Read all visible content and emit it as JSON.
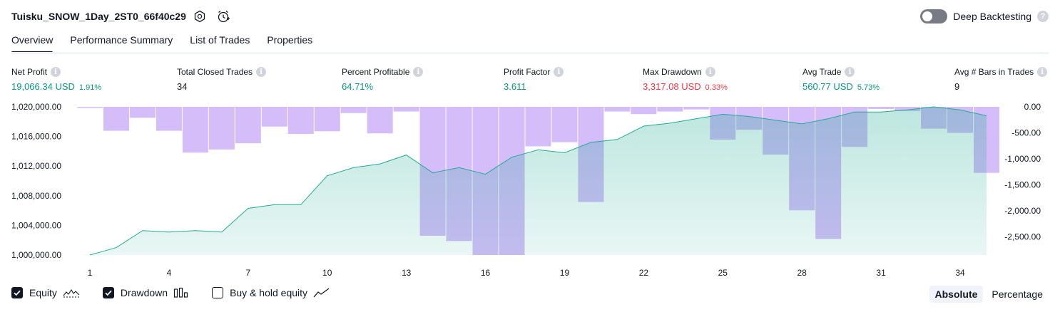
{
  "header": {
    "strategy_title": "Tuisku_SNOW_1Day_2ST0_66f40c29",
    "deep_backtesting_label": "Deep Backtesting",
    "help_glyph": "?"
  },
  "tabs": [
    {
      "label": "Overview",
      "active": true
    },
    {
      "label": "Performance Summary",
      "active": false
    },
    {
      "label": "List of Trades",
      "active": false
    },
    {
      "label": "Properties",
      "active": false
    }
  ],
  "stats": [
    {
      "label": "Net Profit",
      "value": "19,066.34 USD",
      "pct": "1.91%",
      "color": "#089981"
    },
    {
      "label": "Total Closed Trades",
      "value": "34",
      "pct": "",
      "color": "#131722"
    },
    {
      "label": "Percent Profitable",
      "value": "64.71%",
      "pct": "",
      "color": "#089981"
    },
    {
      "label": "Profit Factor",
      "value": "3.611",
      "pct": "",
      "color": "#089981"
    },
    {
      "label": "Max Drawdown",
      "value": "3,317.08 USD",
      "pct": "0.33%",
      "color": "#f23645"
    },
    {
      "label": "Avg Trade",
      "value": "560.77 USD",
      "pct": "5.73%",
      "color": "#089981"
    },
    {
      "label": "Avg # Bars in Trades",
      "value": "9",
      "pct": "",
      "color": "#131722"
    }
  ],
  "info_glyph": "i",
  "chart_data": {
    "type": "line",
    "x": [
      1,
      2,
      3,
      4,
      5,
      6,
      7,
      8,
      9,
      10,
      11,
      12,
      13,
      14,
      15,
      16,
      17,
      18,
      19,
      20,
      21,
      22,
      23,
      24,
      25,
      26,
      27,
      28,
      29,
      30,
      31,
      32,
      33,
      34,
      35
    ],
    "x_ticks": [
      "1",
      "4",
      "7",
      "10",
      "13",
      "16",
      "19",
      "22",
      "25",
      "28",
      "31",
      "34"
    ],
    "y_left_ticks": [
      "1,020,000.00",
      "1,016,000.00",
      "1,012,000.00",
      "1,008,000.00",
      "1,004,000.00",
      "1,000,000.00"
    ],
    "y_left_lim": [
      1000000,
      1020000
    ],
    "y_right_ticks": [
      "0.00",
      "-500.00",
      "-1,000.00",
      "-1,500.00",
      "-2,000.00",
      "-2,500.00"
    ],
    "y_right_lim": [
      -2850,
      0
    ],
    "series": [
      {
        "name": "Equity",
        "type": "area",
        "color": "#22ab94",
        "values": [
          1000000,
          1001000,
          1003300,
          1003100,
          1003300,
          1003100,
          1006300,
          1006800,
          1006800,
          1010700,
          1011800,
          1012300,
          1013500,
          1011100,
          1011800,
          1010900,
          1013200,
          1014200,
          1013800,
          1015200,
          1015600,
          1017400,
          1017800,
          1018400,
          1019000,
          1018700,
          1018200,
          1017700,
          1018400,
          1019300,
          1019300,
          1019600,
          1020000,
          1019600,
          1018800
        ]
      },
      {
        "name": "Drawdown",
        "type": "bar",
        "color": "#c5a3f7",
        "values": [
          -20,
          -460,
          -210,
          -460,
          -880,
          -820,
          -700,
          -380,
          -520,
          -470,
          -120,
          -510,
          -90,
          -2480,
          -2580,
          -2850,
          -2850,
          -760,
          -680,
          -1830,
          -90,
          -140,
          -90,
          -50,
          -630,
          -440,
          -920,
          -1990,
          -2540,
          -770,
          -40,
          -80,
          -420,
          -500,
          -1270
        ]
      }
    ]
  },
  "legend": [
    {
      "label": "Equity",
      "checked": true,
      "icon": "equity-wave-icon"
    },
    {
      "label": "Drawdown",
      "checked": true,
      "icon": "bar-chart-icon"
    },
    {
      "label": "Buy & hold equity",
      "checked": false,
      "icon": "line-chart-icon"
    }
  ],
  "mode": [
    {
      "label": "Absolute",
      "active": true
    },
    {
      "label": "Percentage",
      "active": false
    }
  ]
}
